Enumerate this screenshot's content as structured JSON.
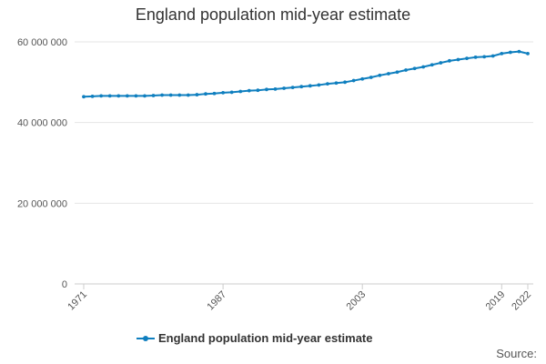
{
  "chart_data": {
    "type": "line",
    "title": "England population mid-year estimate",
    "xlabel": "",
    "ylabel": "",
    "x_ticks": [
      "1971",
      "1987",
      "2003",
      "2019",
      "2022"
    ],
    "y_ticks": [
      "0",
      "20 000 000",
      "40 000 000",
      "60 000 000"
    ],
    "y_tick_values": [
      0,
      20000000,
      40000000,
      60000000
    ],
    "ylim": [
      0,
      60000000
    ],
    "xlim": [
      1971,
      2022
    ],
    "grid": true,
    "legend_position": "bottom",
    "series": [
      {
        "name": "England population mid-year estimate",
        "color": "#0f7fbf",
        "x": [
          1971,
          1972,
          1973,
          1974,
          1975,
          1976,
          1977,
          1978,
          1979,
          1980,
          1981,
          1982,
          1983,
          1984,
          1985,
          1986,
          1987,
          1988,
          1989,
          1990,
          1991,
          1992,
          1993,
          1994,
          1995,
          1996,
          1997,
          1998,
          1999,
          2000,
          2001,
          2002,
          2003,
          2004,
          2005,
          2006,
          2007,
          2008,
          2009,
          2010,
          2011,
          2012,
          2013,
          2014,
          2015,
          2016,
          2017,
          2018,
          2019,
          2020,
          2021,
          2022
        ],
        "values": [
          46400000,
          46500000,
          46600000,
          46600000,
          46600000,
          46600000,
          46600000,
          46600000,
          46700000,
          46800000,
          46800000,
          46800000,
          46800000,
          46900000,
          47100000,
          47200000,
          47400000,
          47500000,
          47700000,
          47900000,
          48000000,
          48200000,
          48300000,
          48500000,
          48700000,
          48900000,
          49100000,
          49300000,
          49600000,
          49800000,
          50000000,
          50400000,
          50800000,
          51200000,
          51700000,
          52100000,
          52500000,
          53000000,
          53400000,
          53800000,
          54300000,
          54800000,
          55300000,
          55600000,
          55900000,
          56200000,
          56300000,
          56500000,
          57100000,
          57400000,
          57600000,
          57100000
        ]
      }
    ]
  },
  "legend": {
    "label": "England population mid-year estimate"
  },
  "footer": {
    "source_label": "Source:"
  }
}
